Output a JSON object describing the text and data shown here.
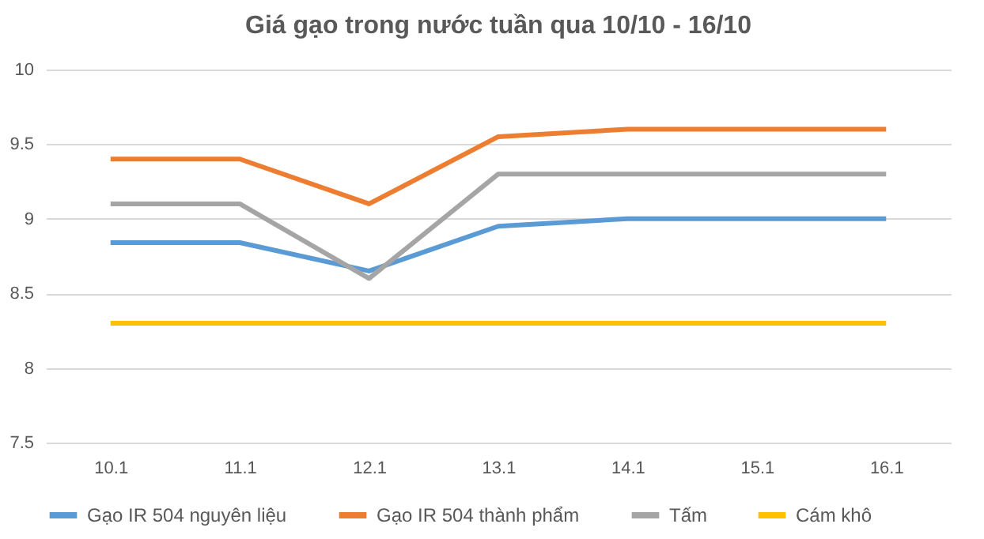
{
  "chart_data": {
    "type": "line",
    "title": "Giá gạo trong nước tuần qua 10/10 - 16/10",
    "categories": [
      "10.1",
      "11.1",
      "12.1",
      "13.1",
      "14.1",
      "15.1",
      "16.1"
    ],
    "series": [
      {
        "name": "Gạo IR 504 nguyên liệu",
        "color": "#5b9bd5",
        "values": [
          8.84,
          8.84,
          8.65,
          8.95,
          9.0,
          9.0,
          9.0
        ]
      },
      {
        "name": "Gạo IR 504 thành phẩm",
        "color": "#ed7d31",
        "values": [
          9.4,
          9.4,
          9.1,
          9.55,
          9.6,
          9.6,
          9.6
        ]
      },
      {
        "name": "Tấm",
        "color": "#a5a5a5",
        "values": [
          9.1,
          9.1,
          8.6,
          9.3,
          9.3,
          9.3,
          9.3
        ]
      },
      {
        "name": "Cám khô",
        "color": "#ffc000",
        "values": [
          8.3,
          8.3,
          8.3,
          8.3,
          8.3,
          8.3,
          8.3
        ]
      }
    ],
    "ylim": [
      7.5,
      10
    ],
    "yticks": [
      7.5,
      8,
      8.5,
      9,
      9.5,
      10
    ],
    "grid": "y",
    "legend": "bottom",
    "marker": "none"
  }
}
